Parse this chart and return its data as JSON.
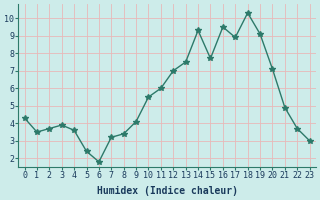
{
  "x": [
    0,
    1,
    2,
    3,
    4,
    5,
    6,
    7,
    8,
    9,
    10,
    11,
    12,
    13,
    14,
    15,
    16,
    17,
    18,
    19,
    20,
    21,
    22,
    23
  ],
  "y": [
    4.3,
    3.5,
    3.7,
    3.9,
    3.6,
    2.4,
    1.8,
    3.2,
    3.4,
    4.1,
    5.5,
    6.0,
    7.0,
    7.5,
    9.3,
    7.7,
    9.5,
    8.9,
    10.3,
    9.1,
    7.1,
    4.9,
    3.7,
    3.0
  ],
  "line_color": "#2d7a6a",
  "marker": "*",
  "marker_size": 4,
  "background_color": "#cdecea",
  "grid_color": "#e8b8b8",
  "xlabel": "Humidex (Indice chaleur)",
  "xlim": [
    -0.5,
    23.5
  ],
  "ylim": [
    1.5,
    10.8
  ],
  "yticks": [
    2,
    3,
    4,
    5,
    6,
    7,
    8,
    9,
    10
  ],
  "xticks": [
    0,
    1,
    2,
    3,
    4,
    5,
    6,
    7,
    8,
    9,
    10,
    11,
    12,
    13,
    14,
    15,
    16,
    17,
    18,
    19,
    20,
    21,
    22,
    23
  ],
  "tick_fontsize": 6,
  "xlabel_fontsize": 7,
  "line_width": 1.0
}
